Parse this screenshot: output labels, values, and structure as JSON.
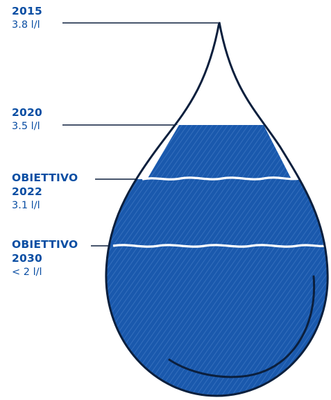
{
  "colors": {
    "accent": "#0a4ea3",
    "fill": "#1a59ad",
    "outline": "#0b1f3d",
    "hatch": "#4f86cc"
  },
  "milestones": [
    {
      "year": "2015",
      "value": "3.8 l/l"
    },
    {
      "year": "2020",
      "value": "3.5 l/l"
    },
    {
      "prefix": "OBIETTIVO",
      "year": "2022",
      "value": "3.1 l/l"
    },
    {
      "prefix": "OBIETTIVO",
      "year": "2030",
      "value": "< 2 l/l"
    }
  ]
}
